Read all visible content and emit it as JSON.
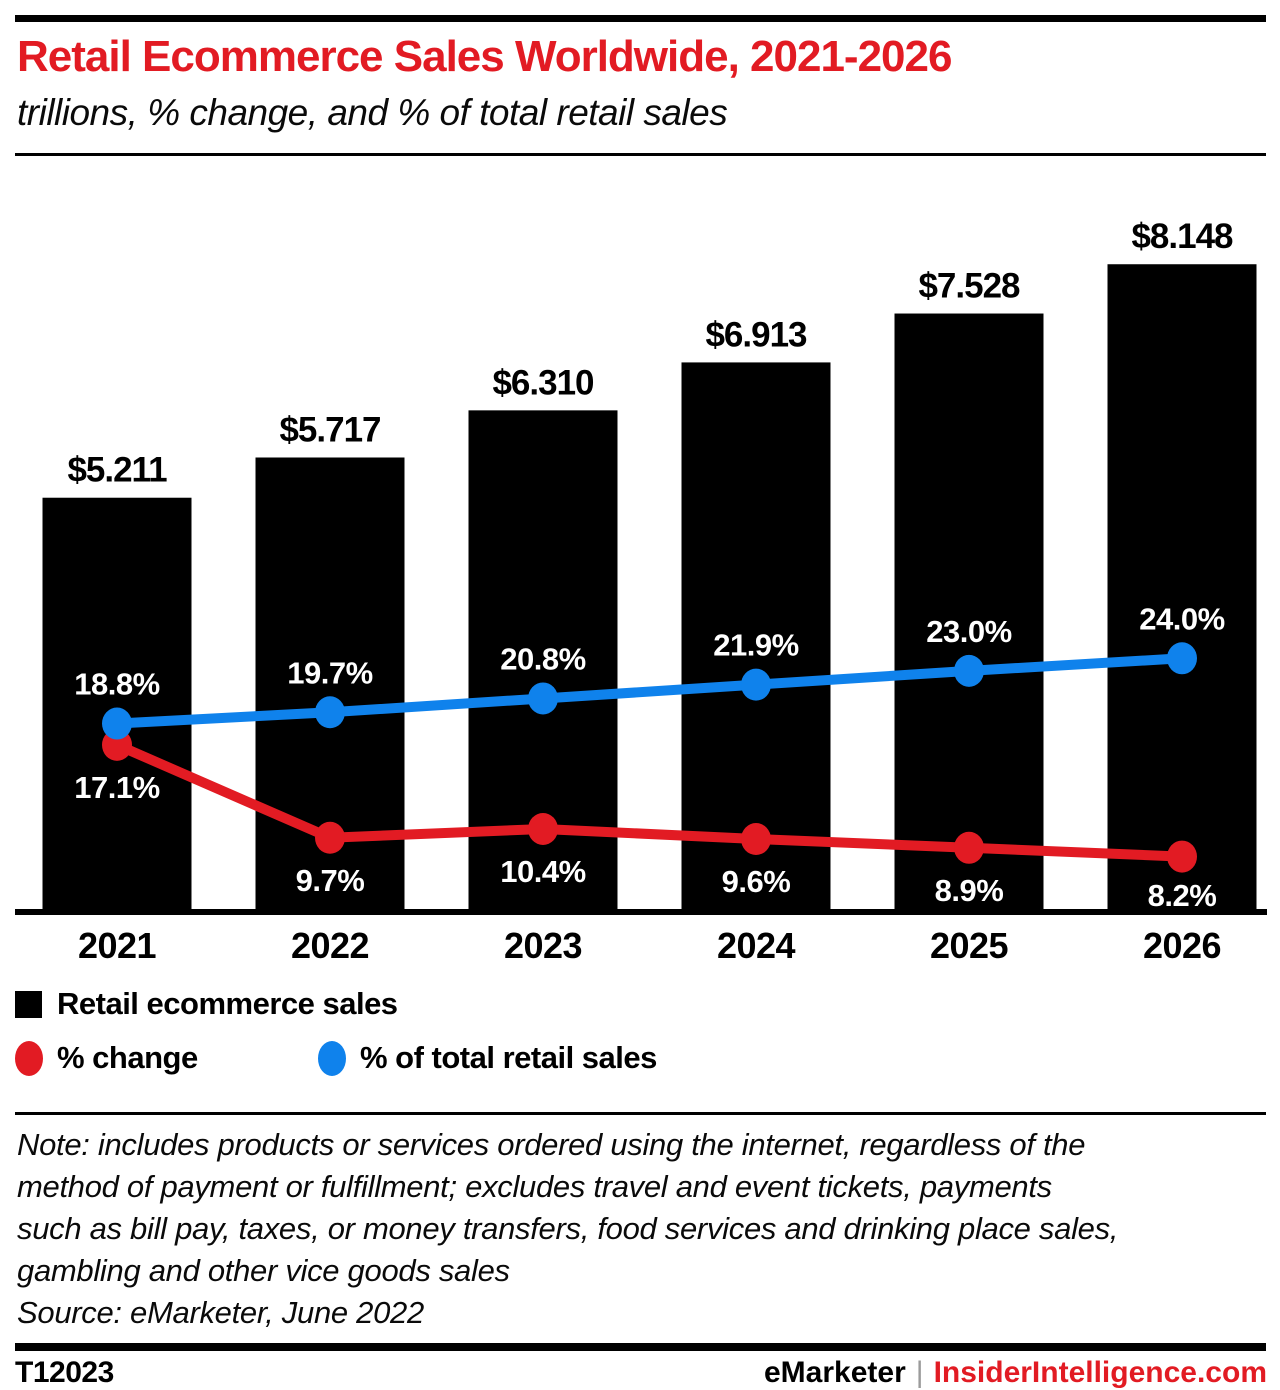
{
  "colors": {
    "red": "#e21b23",
    "blue": "#0f82ec",
    "bar_black": "#000000",
    "separator_gray": "#9b9b9b",
    "label_white": "#ffffff"
  },
  "header": {
    "title": "Retail Ecommerce Sales Worldwide, 2021-2026",
    "subtitle": "trillions, % change, and % of total retail sales"
  },
  "chart_data": {
    "type": "bar",
    "combo": "bar with two line series (data labels only, no value axes)",
    "categories": [
      "2021",
      "2022",
      "2023",
      "2024",
      "2025",
      "2026"
    ],
    "series": [
      {
        "name": "Retail ecommerce sales",
        "chart_type": "bar",
        "unit": "USD trillions",
        "values": [
          5.211,
          5.717,
          6.31,
          6.913,
          7.528,
          8.148
        ],
        "data_labels": [
          "$5.211",
          "$5.717",
          "$6.310",
          "$6.913",
          "$7.528",
          "$8.148"
        ],
        "color": "#000000"
      },
      {
        "name": "% change",
        "chart_type": "line",
        "unit": "%",
        "values": [
          17.1,
          9.7,
          10.4,
          9.6,
          8.9,
          8.2
        ],
        "data_labels": [
          "17.1%",
          "9.7%",
          "10.4%",
          "9.6%",
          "8.9%",
          "8.2%"
        ],
        "color": "#e21b23"
      },
      {
        "name": "% of total retail sales",
        "chart_type": "line",
        "unit": "%",
        "values": [
          18.8,
          19.7,
          20.8,
          21.9,
          23.0,
          24.0
        ],
        "data_labels": [
          "18.8%",
          "19.7%",
          "20.8%",
          "21.9%",
          "23.0%",
          "24.0%"
        ],
        "color": "#0f82ec"
      }
    ],
    "title": "Retail Ecommerce Sales Worldwide, 2021-2026",
    "subtitle": "trillions, % change, and % of total retail sales",
    "xlabel": "",
    "ylabel": "",
    "ylim": [
      0,
      8.6
    ],
    "grid": false,
    "legend_position": "bottom"
  },
  "legend": {
    "bar_label": "Retail ecommerce sales",
    "red_label": "% change",
    "blue_label": "% of total retail sales"
  },
  "note": {
    "lines": [
      "Note: includes products or services ordered using the internet, regardless of the",
      "method of payment or fulfillment; excludes travel and event tickets, payments",
      "such as bill pay, taxes, or money transfers, food services and drinking place sales,",
      "gambling and other vice goods sales",
      "Source: eMarketer, June 2022"
    ]
  },
  "footer": {
    "id": "T12023",
    "brand": "eMarketer",
    "separator": "|",
    "site": "InsiderIntelligence.com"
  }
}
